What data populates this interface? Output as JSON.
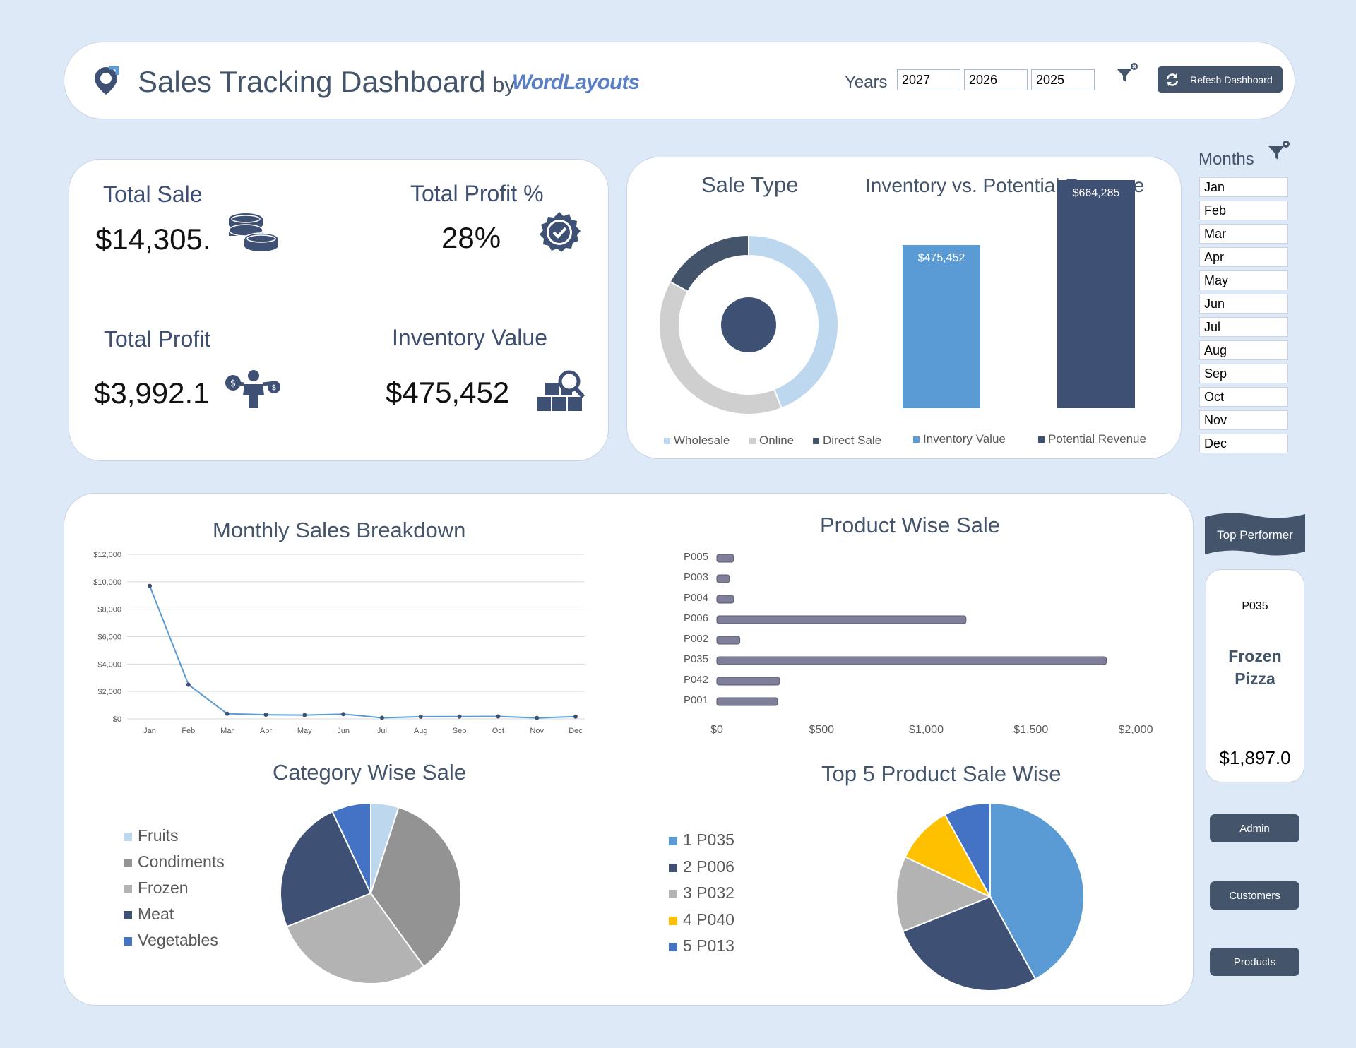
{
  "header": {
    "title": "Sales Tracking Dashboard",
    "by": "by",
    "brand": "WordLayouts",
    "years_label": "Years",
    "years": [
      "2027",
      "2026",
      "2025"
    ],
    "refresh_label": "Refesh Dashboard"
  },
  "kpis": {
    "total_sale_label": "Total Sale",
    "total_sale_value": "$14,305.",
    "total_profit_pct_label": "Total Profit %",
    "total_profit_pct_value": "28%",
    "total_profit_label": "Total Profit",
    "total_profit_value": "$3,992.1",
    "inventory_label": "Inventory Value",
    "inventory_value": "$475,452"
  },
  "months": {
    "label": "Months",
    "items": [
      "Jan",
      "Feb",
      "Mar",
      "Apr",
      "May",
      "Jun",
      "Jul",
      "Aug",
      "Sep",
      "Oct",
      "Nov",
      "Dec"
    ]
  },
  "top_performer": {
    "banner": "Top Performer",
    "product_id": "P035",
    "product_name_1": "Frozen",
    "product_name_2": "Pizza",
    "value": "$1,897.0"
  },
  "nav": {
    "admin": "Admin",
    "customers": "Customers",
    "products": "Products"
  },
  "colors": {
    "navy": "#44546a",
    "dark_blue": "#3e5073",
    "mid_blue": "#5b9bd5",
    "light_blue": "#bdd7ee",
    "gray": "#a5a5a5",
    "light_gray": "#cfcfcf",
    "gold": "#ffc000",
    "royal_blue": "#4472c4",
    "bar_gray": "#7f7f9a",
    "background": "#dde9f7"
  },
  "chart_data": [
    {
      "type": "pie",
      "subtype": "donut",
      "title": "Sale Type",
      "categories": [
        "Wholesale",
        "Online",
        "Direct Sale"
      ],
      "values": [
        44,
        39,
        17
      ],
      "colors": [
        "#bdd7ee",
        "#cfcfcf",
        "#44546a"
      ]
    },
    {
      "type": "bar",
      "title": "Inventory vs. Potential Revenue",
      "categories": [
        "Inventory Value",
        "Potential Revenue"
      ],
      "values": [
        475452,
        664285
      ],
      "labels": [
        "$475,452",
        "$664,285"
      ],
      "colors": [
        "#5b9bd5",
        "#3e5073"
      ]
    },
    {
      "type": "line",
      "title": "Monthly Sales Breakdown",
      "x": [
        "Jan",
        "Feb",
        "Mar",
        "Apr",
        "May",
        "Jun",
        "Jul",
        "Aug",
        "Sep",
        "Oct",
        "Nov",
        "Dec"
      ],
      "series": [
        {
          "values": [
            9700,
            2500,
            380,
            300,
            280,
            350,
            80,
            160,
            170,
            180,
            70,
            170
          ]
        }
      ],
      "ylim": [
        0,
        12000
      ],
      "yticks": [
        "$0",
        "$2,000",
        "$4,000",
        "$6,000",
        "$8,000",
        "$10,000",
        "$12,000"
      ],
      "grid": true
    },
    {
      "type": "bar",
      "orientation": "horizontal",
      "title": "Product Wise Sale",
      "categories": [
        "P005",
        "P003",
        "P004",
        "P006",
        "P002",
        "P035",
        "P042",
        "P001"
      ],
      "values": [
        80,
        60,
        80,
        1190,
        110,
        1860,
        300,
        290
      ],
      "xlim": [
        0,
        2000
      ],
      "xticks": [
        "$0",
        "$500",
        "$1,000",
        "$1,500",
        "$2,000"
      ]
    },
    {
      "type": "pie",
      "title": "Category Wise Sale",
      "categories": [
        "Fruits",
        "Condiments",
        "Frozen",
        "Meat",
        "Vegetables"
      ],
      "values": [
        5,
        35,
        29,
        24,
        7
      ],
      "colors": [
        "#bdd7ee",
        "#939393",
        "#b3b3b3",
        "#3e5073",
        "#4472c4"
      ],
      "legend": "left"
    },
    {
      "type": "pie",
      "title": "Top 5 Product Sale Wise",
      "categories": [
        "1 P035",
        "2 P006",
        "3 P032",
        "4 P040",
        "5 P013"
      ],
      "values": [
        42,
        27,
        13,
        10,
        8
      ],
      "colors": [
        "#5b9bd5",
        "#3e5073",
        "#b3b3b3",
        "#ffc000",
        "#4472c4"
      ],
      "legend": "left"
    }
  ]
}
